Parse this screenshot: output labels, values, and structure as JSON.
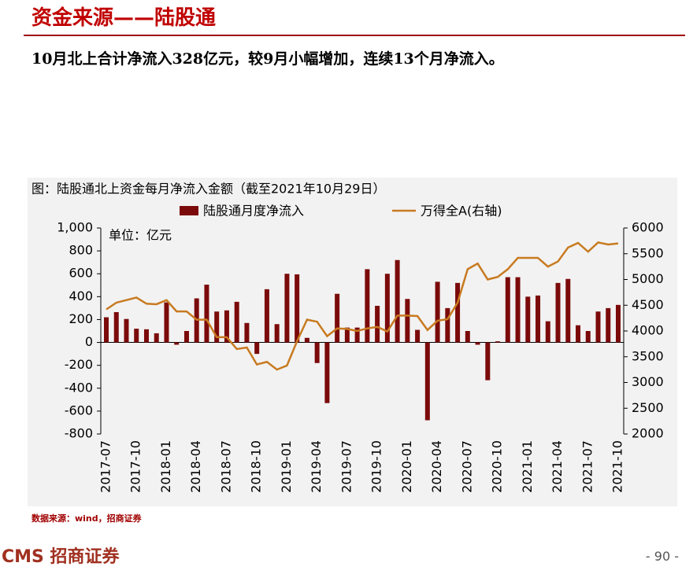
{
  "page": {
    "title": "资金来源——陆股通",
    "subtitle": "10月北上合计净流入328亿元，较9月小幅增加，连续13个月净流入。",
    "source": "数据来源：wind，招商证券",
    "logo": "CMS 招商证券",
    "page_number": "- 90 -"
  },
  "chart_data": {
    "type": "bar_line",
    "title": "图：陆股通北上资金每月净流入金额（截至2021年10月29日）",
    "annotation": "单位：亿元",
    "categories": [
      "2017-07",
      null,
      null,
      "2017-10",
      null,
      null,
      "2018-01",
      null,
      null,
      "2018-04",
      null,
      null,
      "2018-07",
      null,
      null,
      "2018-10",
      null,
      null,
      "2019-01",
      null,
      null,
      "2019-04",
      null,
      null,
      "2019-07",
      null,
      null,
      "2019-10",
      null,
      null,
      "2020-01",
      null,
      null,
      "2020-04",
      null,
      null,
      "2020-07",
      null,
      null,
      "2020-10",
      null,
      null,
      "2021-01",
      null,
      null,
      "2021-04",
      null,
      null,
      "2021-07",
      null,
      null,
      "2021-10"
    ],
    "series": [
      {
        "name": "陆股通月度净流入",
        "type": "bar",
        "color": "#7b0a0a",
        "values": [
          220,
          265,
          205,
          120,
          115,
          80,
          350,
          -20,
          100,
          385,
          505,
          270,
          280,
          355,
          170,
          -100,
          465,
          160,
          600,
          595,
          40,
          -180,
          -530,
          425,
          130,
          130,
          640,
          320,
          600,
          720,
          380,
          110,
          -680,
          530,
          300,
          520,
          100,
          -20,
          -330,
          10,
          570,
          570,
          400,
          410,
          185,
          520,
          555,
          150,
          100,
          270,
          300,
          328
        ]
      },
      {
        "name": "万得全A(右轴)",
        "type": "line",
        "axis": "y2",
        "color": "#c87a20",
        "values": [
          4420,
          4550,
          4600,
          4650,
          4530,
          4520,
          4600,
          4380,
          4380,
          4220,
          4220,
          3880,
          3880,
          3650,
          3680,
          3350,
          3400,
          3250,
          3330,
          3800,
          4220,
          4180,
          3900,
          4050,
          4040,
          4000,
          4050,
          4080,
          3990,
          4300,
          4300,
          4290,
          4020,
          4200,
          4230,
          4550,
          5200,
          5310,
          5000,
          5050,
          5200,
          5420,
          5420,
          5420,
          5250,
          5350,
          5620,
          5710,
          5540,
          5720,
          5680,
          5700
        ]
      }
    ],
    "ylim": [
      -800,
      1000
    ],
    "yticks": [
      -800,
      -600,
      -400,
      -200,
      0,
      200,
      400,
      600,
      800,
      {
        "value": 1000,
        "label": "1,000"
      }
    ],
    "y2lim": [
      2000,
      6000
    ],
    "y2ticks": [
      2000,
      2500,
      3000,
      3500,
      4000,
      4500,
      5000,
      5500,
      6000
    ],
    "negative_tick_color": "#e00000",
    "legend": "top"
  }
}
